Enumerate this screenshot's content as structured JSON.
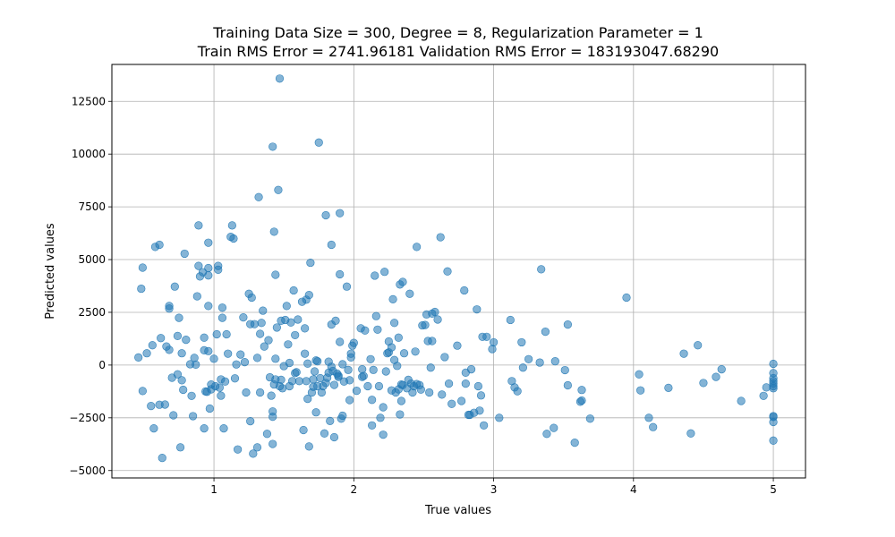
{
  "chart_data": {
    "type": "scatter",
    "title": "Training Data Size = 300, Degree = 8, Regularization Parameter = 1",
    "subtitle": "Train RMS Error = 2741.96181 Validation RMS Error = 183193047.68290",
    "xlabel": "True values",
    "ylabel": "Predicted values",
    "xlim": [
      0.27,
      5.23
    ],
    "ylim": [
      -5350,
      14250
    ],
    "x_ticks": [
      1,
      2,
      3,
      4,
      5
    ],
    "y_ticks": [
      -5000,
      -2500,
      0,
      2500,
      5000,
      7500,
      10000,
      12500
    ],
    "x_tick_labels": [
      "1",
      "2",
      "3",
      "4",
      "5"
    ],
    "y_tick_labels": [
      "−5000",
      "−2500",
      "0",
      "2500",
      "5000",
      "7500",
      "10000",
      "12500"
    ],
    "grid": true,
    "marker_color": "#1f77b4",
    "marker_alpha": 0.55,
    "points": [
      [
        0.46,
        360
      ],
      [
        0.48,
        3620
      ],
      [
        0.49,
        4620
      ],
      [
        0.49,
        -1230
      ],
      [
        0.52,
        560
      ],
      [
        0.55,
        -1940
      ],
      [
        0.56,
        940
      ],
      [
        0.57,
        -3000
      ],
      [
        0.58,
        5600
      ],
      [
        0.61,
        5700
      ],
      [
        0.61,
        -1880
      ],
      [
        0.62,
        1280
      ],
      [
        0.63,
        -4400
      ],
      [
        0.65,
        -1870
      ],
      [
        0.66,
        880
      ],
      [
        0.68,
        2800
      ],
      [
        0.68,
        2680
      ],
      [
        0.68,
        720
      ],
      [
        0.7,
        -600
      ],
      [
        0.71,
        -2380
      ],
      [
        0.72,
        3720
      ],
      [
        0.74,
        1380
      ],
      [
        0.74,
        -440
      ],
      [
        0.75,
        2240
      ],
      [
        0.76,
        -3900
      ],
      [
        0.77,
        560
      ],
      [
        0.77,
        -720
      ],
      [
        0.78,
        -1170
      ],
      [
        0.79,
        5280
      ],
      [
        0.8,
        1200
      ],
      [
        0.83,
        40
      ],
      [
        0.84,
        -1460
      ],
      [
        0.85,
        -2420
      ],
      [
        0.86,
        340
      ],
      [
        0.87,
        20
      ],
      [
        0.88,
        3260
      ],
      [
        0.89,
        4700
      ],
      [
        0.89,
        6620
      ],
      [
        0.9,
        4200
      ],
      [
        0.92,
        4400
      ],
      [
        0.93,
        700
      ],
      [
        0.93,
        1300
      ],
      [
        0.93,
        -3000
      ],
      [
        0.94,
        -1250
      ],
      [
        0.95,
        -1270
      ],
      [
        0.96,
        4600
      ],
      [
        0.96,
        5800
      ],
      [
        0.96,
        2800
      ],
      [
        0.96,
        4250
      ],
      [
        0.96,
        660
      ],
      [
        0.97,
        -2060
      ],
      [
        0.98,
        -1150
      ],
      [
        0.98,
        -920
      ],
      [
        1.0,
        300
      ],
      [
        1.01,
        -1000
      ],
      [
        1.02,
        1460
      ],
      [
        1.03,
        4520
      ],
      [
        1.03,
        4700
      ],
      [
        1.04,
        -1070
      ],
      [
        1.05,
        -1450
      ],
      [
        1.05,
        -680
      ],
      [
        1.06,
        2240
      ],
      [
        1.06,
        2720
      ],
      [
        1.07,
        -3000
      ],
      [
        1.08,
        -780
      ],
      [
        1.09,
        1460
      ],
      [
        1.1,
        540
      ],
      [
        1.12,
        6080
      ],
      [
        1.13,
        6620
      ],
      [
        1.14,
        6000
      ],
      [
        1.15,
        -630
      ],
      [
        1.16,
        30
      ],
      [
        1.17,
        -4000
      ],
      [
        1.19,
        500
      ],
      [
        1.21,
        2260
      ],
      [
        1.22,
        140
      ],
      [
        1.23,
        -1300
      ],
      [
        1.25,
        3380
      ],
      [
        1.26,
        -2660
      ],
      [
        1.26,
        1940
      ],
      [
        1.27,
        3200
      ],
      [
        1.28,
        -4200
      ],
      [
        1.29,
        1940
      ],
      [
        1.31,
        -3900
      ],
      [
        1.31,
        340
      ],
      [
        1.32,
        7960
      ],
      [
        1.33,
        -1300
      ],
      [
        1.33,
        1480
      ],
      [
        1.34,
        2000
      ],
      [
        1.35,
        2580
      ],
      [
        1.36,
        880
      ],
      [
        1.38,
        -3260
      ],
      [
        1.39,
        1180
      ],
      [
        1.4,
        -580
      ],
      [
        1.41,
        -1450
      ],
      [
        1.42,
        10350
      ],
      [
        1.42,
        -3740
      ],
      [
        1.42,
        -2200
      ],
      [
        1.42,
        -2450
      ],
      [
        1.43,
        6320
      ],
      [
        1.43,
        -920
      ],
      [
        1.44,
        4280
      ],
      [
        1.44,
        -680
      ],
      [
        1.44,
        300
      ],
      [
        1.45,
        1780
      ],
      [
        1.46,
        8300
      ],
      [
        1.47,
        13580
      ],
      [
        1.47,
        -1000
      ],
      [
        1.48,
        2100
      ],
      [
        1.48,
        -700
      ],
      [
        1.49,
        -1100
      ],
      [
        1.5,
        -50
      ],
      [
        1.51,
        2140
      ],
      [
        1.52,
        2800
      ],
      [
        1.53,
        980
      ],
      [
        1.54,
        -1000
      ],
      [
        1.54,
        100
      ],
      [
        1.55,
        2020
      ],
      [
        1.56,
        -760
      ],
      [
        1.57,
        3540
      ],
      [
        1.58,
        -380
      ],
      [
        1.58,
        1420
      ],
      [
        1.59,
        -340
      ],
      [
        1.6,
        2160
      ],
      [
        1.61,
        -760
      ],
      [
        1.63,
        3000
      ],
      [
        1.64,
        -3080
      ],
      [
        1.65,
        1740
      ],
      [
        1.65,
        540
      ],
      [
        1.66,
        3100
      ],
      [
        1.66,
        -760
      ],
      [
        1.67,
        70
      ],
      [
        1.67,
        -1600
      ],
      [
        1.68,
        3320
      ],
      [
        1.68,
        -3860
      ],
      [
        1.69,
        4850
      ],
      [
        1.7,
        -1300
      ],
      [
        1.71,
        -1030
      ],
      [
        1.71,
        -680
      ],
      [
        1.72,
        -300
      ],
      [
        1.73,
        -2240
      ],
      [
        1.73,
        220
      ],
      [
        1.74,
        180
      ],
      [
        1.74,
        -1000
      ],
      [
        1.75,
        10550
      ],
      [
        1.76,
        -620
      ],
      [
        1.77,
        -1300
      ],
      [
        1.78,
        -1000
      ],
      [
        1.79,
        -3240
      ],
      [
        1.8,
        -850
      ],
      [
        1.8,
        7100
      ],
      [
        1.81,
        -600
      ],
      [
        1.82,
        -360
      ],
      [
        1.82,
        160
      ],
      [
        1.83,
        -2650
      ],
      [
        1.84,
        5700
      ],
      [
        1.84,
        -80
      ],
      [
        1.84,
        1920
      ],
      [
        1.85,
        -280
      ],
      [
        1.86,
        -3420
      ],
      [
        1.86,
        -940
      ],
      [
        1.87,
        2100
      ],
      [
        1.88,
        -400
      ],
      [
        1.89,
        -500
      ],
      [
        1.89,
        -560
      ],
      [
        1.9,
        4300
      ],
      [
        1.9,
        7200
      ],
      [
        1.9,
        1100
      ],
      [
        1.91,
        -2540
      ],
      [
        1.92,
        -2400
      ],
      [
        1.92,
        40
      ],
      [
        1.93,
        -780
      ],
      [
        1.95,
        3720
      ],
      [
        1.96,
        -230
      ],
      [
        1.97,
        -1660
      ],
      [
        1.97,
        -720
      ],
      [
        1.98,
        540
      ],
      [
        1.98,
        360
      ],
      [
        1.99,
        920
      ],
      [
        2.0,
        1050
      ],
      [
        2.02,
        -1220
      ],
      [
        2.05,
        1740
      ],
      [
        2.06,
        -200
      ],
      [
        2.06,
        -560
      ],
      [
        2.07,
        -520
      ],
      [
        2.08,
        1640
      ],
      [
        2.1,
        -1000
      ],
      [
        2.12,
        280
      ],
      [
        2.13,
        -2860
      ],
      [
        2.13,
        -1650
      ],
      [
        2.14,
        -230
      ],
      [
        2.15,
        4240
      ],
      [
        2.16,
        2320
      ],
      [
        2.17,
        1680
      ],
      [
        2.18,
        -1000
      ],
      [
        2.19,
        -2500
      ],
      [
        2.21,
        -3300
      ],
      [
        2.21,
        -2000
      ],
      [
        2.22,
        4420
      ],
      [
        2.23,
        -300
      ],
      [
        2.24,
        560
      ],
      [
        2.25,
        1120
      ],
      [
        2.25,
        600
      ],
      [
        2.27,
        -1200
      ],
      [
        2.27,
        840
      ],
      [
        2.28,
        3120
      ],
      [
        2.29,
        240
      ],
      [
        2.29,
        2000
      ],
      [
        2.3,
        -1300
      ],
      [
        2.31,
        -40
      ],
      [
        2.32,
        -1150
      ],
      [
        2.32,
        1300
      ],
      [
        2.33,
        3820
      ],
      [
        2.33,
        -2340
      ],
      [
        2.34,
        -920
      ],
      [
        2.34,
        -1700
      ],
      [
        2.35,
        3940
      ],
      [
        2.35,
        -950
      ],
      [
        2.36,
        560
      ],
      [
        2.38,
        -1100
      ],
      [
        2.39,
        -700
      ],
      [
        2.4,
        3380
      ],
      [
        2.41,
        -880
      ],
      [
        2.42,
        -1300
      ],
      [
        2.43,
        -1000
      ],
      [
        2.44,
        640
      ],
      [
        2.45,
        5600
      ],
      [
        2.45,
        -900
      ],
      [
        2.47,
        -950
      ],
      [
        2.48,
        -1160
      ],
      [
        2.49,
        1880
      ],
      [
        2.51,
        1900
      ],
      [
        2.52,
        2400
      ],
      [
        2.53,
        1140
      ],
      [
        2.54,
        -1300
      ],
      [
        2.55,
        -120
      ],
      [
        2.56,
        2440
      ],
      [
        2.56,
        1140
      ],
      [
        2.58,
        2520
      ],
      [
        2.6,
        2160
      ],
      [
        2.62,
        6060
      ],
      [
        2.63,
        -1400
      ],
      [
        2.65,
        380
      ],
      [
        2.67,
        4440
      ],
      [
        2.68,
        -880
      ],
      [
        2.7,
        -1840
      ],
      [
        2.74,
        920
      ],
      [
        2.77,
        -1700
      ],
      [
        2.79,
        3540
      ],
      [
        2.8,
        -360
      ],
      [
        2.8,
        -880
      ],
      [
        2.82,
        -2360
      ],
      [
        2.83,
        -2360
      ],
      [
        2.84,
        -200
      ],
      [
        2.86,
        -2260
      ],
      [
        2.88,
        2640
      ],
      [
        2.89,
        -1000
      ],
      [
        2.9,
        -2160
      ],
      [
        2.91,
        -1440
      ],
      [
        2.92,
        1340
      ],
      [
        2.93,
        -2860
      ],
      [
        2.95,
        1340
      ],
      [
        2.99,
        760
      ],
      [
        3.0,
        1080
      ],
      [
        3.04,
        -2500
      ],
      [
        3.12,
        2140
      ],
      [
        3.13,
        -760
      ],
      [
        3.15,
        -1060
      ],
      [
        3.17,
        -1240
      ],
      [
        3.2,
        1080
      ],
      [
        3.21,
        -120
      ],
      [
        3.25,
        280
      ],
      [
        3.33,
        120
      ],
      [
        3.34,
        4540
      ],
      [
        3.37,
        1580
      ],
      [
        3.38,
        -3260
      ],
      [
        3.43,
        -2980
      ],
      [
        3.44,
        180
      ],
      [
        3.51,
        -240
      ],
      [
        3.53,
        1920
      ],
      [
        3.53,
        -960
      ],
      [
        3.58,
        -3680
      ],
      [
        3.62,
        -1740
      ],
      [
        3.63,
        -1680
      ],
      [
        3.63,
        -1180
      ],
      [
        3.69,
        -2540
      ],
      [
        3.95,
        3200
      ],
      [
        4.04,
        -440
      ],
      [
        4.05,
        -1200
      ],
      [
        4.11,
        -2500
      ],
      [
        4.14,
        -2940
      ],
      [
        4.25,
        -1080
      ],
      [
        4.36,
        540
      ],
      [
        4.41,
        -3240
      ],
      [
        4.46,
        940
      ],
      [
        4.5,
        -850
      ],
      [
        4.59,
        -560
      ],
      [
        4.63,
        -200
      ],
      [
        4.77,
        -1700
      ],
      [
        4.93,
        -1460
      ],
      [
        4.95,
        -1060
      ],
      [
        5.0,
        60
      ],
      [
        5.0,
        -380
      ],
      [
        5.0,
        -620
      ],
      [
        5.0,
        -760
      ],
      [
        5.0,
        -880
      ],
      [
        5.0,
        -1000
      ],
      [
        5.0,
        -1100
      ],
      [
        5.0,
        -2420
      ],
      [
        5.0,
        -2460
      ],
      [
        5.0,
        -2700
      ],
      [
        5.0,
        -3580
      ]
    ]
  }
}
